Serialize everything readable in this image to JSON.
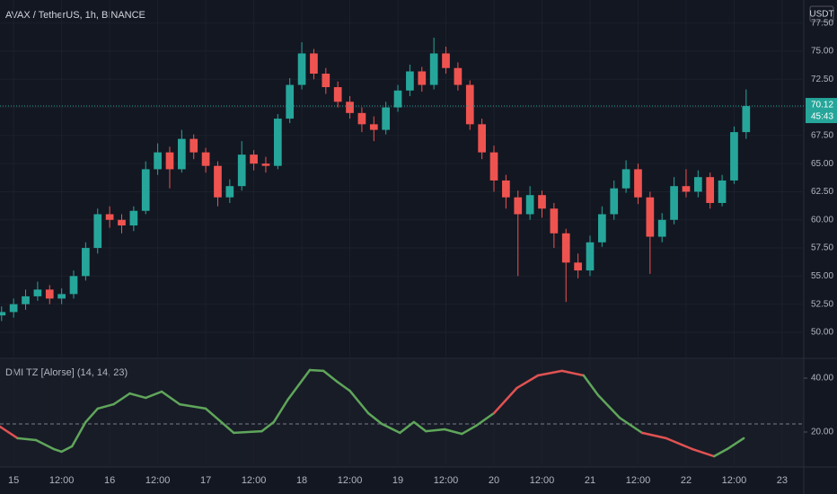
{
  "chart_data": [
    {
      "type": "candlestick",
      "title": "AVAX / TetherUS, 1h, BINANCE",
      "currency": "USDT",
      "last_price_label": "70.12",
      "countdown": "45:43",
      "last_price": 70.12,
      "up_color": "#26a69a",
      "down_color": "#ef5350",
      "x": [
        -3,
        0,
        3,
        6,
        9,
        12,
        15,
        18,
        21,
        24,
        27,
        30,
        33,
        36,
        39,
        42,
        45,
        48,
        51,
        54,
        57,
        60,
        63,
        66,
        69,
        72,
        75,
        78,
        81,
        84,
        87,
        90,
        93,
        96,
        99,
        102,
        105,
        108,
        111,
        114,
        117,
        120,
        123,
        126,
        129,
        132,
        135,
        138,
        141,
        144,
        147,
        150,
        153,
        156,
        159,
        162,
        165,
        168,
        171,
        174,
        177,
        180,
        183
      ],
      "ohlc": [
        [
          51.5,
          52.3,
          51.0,
          51.8
        ],
        [
          51.8,
          53.0,
          51.3,
          52.5
        ],
        [
          52.5,
          53.8,
          52.0,
          53.2
        ],
        [
          53.2,
          54.5,
          52.8,
          53.8
        ],
        [
          53.8,
          54.2,
          52.5,
          53.0
        ],
        [
          53.0,
          53.9,
          52.5,
          53.4
        ],
        [
          53.4,
          55.5,
          53.0,
          55.0
        ],
        [
          55.0,
          58.0,
          54.6,
          57.5
        ],
        [
          57.5,
          61.0,
          57.0,
          60.5
        ],
        [
          60.5,
          61.2,
          59.3,
          60.0
        ],
        [
          60.0,
          60.5,
          58.8,
          59.5
        ],
        [
          59.5,
          61.2,
          59.0,
          60.8
        ],
        [
          60.8,
          65.2,
          60.5,
          64.5
        ],
        [
          64.5,
          66.8,
          64.0,
          66.0
        ],
        [
          66.0,
          66.5,
          62.8,
          64.5
        ],
        [
          64.5,
          68.0,
          64.2,
          67.2
        ],
        [
          67.2,
          67.6,
          65.4,
          66.0
        ],
        [
          66.0,
          66.4,
          64.2,
          64.8
        ],
        [
          64.8,
          65.2,
          61.2,
          62.0
        ],
        [
          62.0,
          63.6,
          61.5,
          63.0
        ],
        [
          63.0,
          67.0,
          62.6,
          65.8
        ],
        [
          65.8,
          66.2,
          64.4,
          65.0
        ],
        [
          65.0,
          65.6,
          64.2,
          64.8
        ],
        [
          64.8,
          69.4,
          64.5,
          69.0
        ],
        [
          69.0,
          72.6,
          68.6,
          72.0
        ],
        [
          72.0,
          75.8,
          71.6,
          74.8
        ],
        [
          74.8,
          75.2,
          72.5,
          73.0
        ],
        [
          73.0,
          73.5,
          71.2,
          71.8
        ],
        [
          71.8,
          72.3,
          70.0,
          70.5
        ],
        [
          70.5,
          71.0,
          69.0,
          69.5
        ],
        [
          69.5,
          70.0,
          67.8,
          68.5
        ],
        [
          68.5,
          69.2,
          67.0,
          68.0
        ],
        [
          68.0,
          70.5,
          67.6,
          70.0
        ],
        [
          70.0,
          72.0,
          69.6,
          71.5
        ],
        [
          71.5,
          73.8,
          71.0,
          73.2
        ],
        [
          73.2,
          73.6,
          71.4,
          72.0
        ],
        [
          72.0,
          76.2,
          71.6,
          74.8
        ],
        [
          74.8,
          75.4,
          73.0,
          73.5
        ],
        [
          73.5,
          74.0,
          71.5,
          72.0
        ],
        [
          72.0,
          72.4,
          68.0,
          68.5
        ],
        [
          68.5,
          69.0,
          65.4,
          66.0
        ],
        [
          66.0,
          66.6,
          62.5,
          63.5
        ],
        [
          63.5,
          64.0,
          61.0,
          62.0
        ],
        [
          62.0,
          62.6,
          55.0,
          60.5
        ],
        [
          60.5,
          63.0,
          60.0,
          62.2
        ],
        [
          62.2,
          62.6,
          60.2,
          61.0
        ],
        [
          61.0,
          61.5,
          57.5,
          58.8
        ],
        [
          58.8,
          59.2,
          52.7,
          56.2
        ],
        [
          56.2,
          57.0,
          54.8,
          55.5
        ],
        [
          55.5,
          58.6,
          55.0,
          58.0
        ],
        [
          58.0,
          61.2,
          57.6,
          60.5
        ],
        [
          60.5,
          63.5,
          60.0,
          62.8
        ],
        [
          62.8,
          65.3,
          62.4,
          64.5
        ],
        [
          64.5,
          65.0,
          61.4,
          62.0
        ],
        [
          62.0,
          62.5,
          55.2,
          58.5
        ],
        [
          58.5,
          60.6,
          58.0,
          60.0
        ],
        [
          60.0,
          63.8,
          59.6,
          63.0
        ],
        [
          63.0,
          64.5,
          62.0,
          62.5
        ],
        [
          62.5,
          64.4,
          62.0,
          63.8
        ],
        [
          63.8,
          64.2,
          61.0,
          61.5
        ],
        [
          61.5,
          64.0,
          61.2,
          63.5
        ],
        [
          63.5,
          68.3,
          63.2,
          67.8
        ],
        [
          67.8,
          71.6,
          67.2,
          70.12
        ]
      ],
      "xlim": [
        -3.4,
        197.4
      ],
      "xticks": [
        {
          "value": 0,
          "label": "15"
        },
        {
          "value": 12,
          "label": "12:00"
        },
        {
          "value": 24,
          "label": "16"
        },
        {
          "value": 36,
          "label": "12:00"
        },
        {
          "value": 48,
          "label": "17"
        },
        {
          "value": 60,
          "label": "12:00"
        },
        {
          "value": 72,
          "label": "18"
        },
        {
          "value": 84,
          "label": "12:00"
        },
        {
          "value": 96,
          "label": "19"
        },
        {
          "value": 108,
          "label": "12:00"
        },
        {
          "value": 120,
          "label": "20"
        },
        {
          "value": 132,
          "label": "12:00"
        },
        {
          "value": 144,
          "label": "21"
        },
        {
          "value": 156,
          "label": "12:00"
        },
        {
          "value": 168,
          "label": "22"
        },
        {
          "value": 180,
          "label": "12:00"
        },
        {
          "value": 192,
          "label": "23"
        }
      ],
      "ylim": [
        47.76,
        79.55
      ],
      "yticks": [
        {
          "value": 50,
          "label": "50.00"
        },
        {
          "value": 52.5,
          "label": "52.50"
        },
        {
          "value": 55,
          "label": "55.00"
        },
        {
          "value": 57.5,
          "label": "57.50"
        },
        {
          "value": 60,
          "label": "60.00"
        },
        {
          "value": 62.5,
          "label": "62.50"
        },
        {
          "value": 65,
          "label": "65.00"
        },
        {
          "value": 67.5,
          "label": "67.50"
        },
        {
          "value": 70,
          "label": "70.00"
        },
        {
          "value": 72.5,
          "label": "72.50"
        },
        {
          "value": 75,
          "label": "75.00"
        },
        {
          "value": 77.5,
          "label": "77.50"
        }
      ]
    },
    {
      "type": "line",
      "title": "DMI TZ [Alorse] (14, 14, 23)",
      "x": [
        -3.4,
        1,
        5.6,
        10,
        12,
        14.6,
        18,
        21,
        25,
        29,
        33,
        37,
        41.5,
        48,
        55,
        62,
        65,
        68.5,
        74,
        77.4,
        80.8,
        84,
        88.6,
        92,
        96.5,
        100,
        103,
        107.7,
        112,
        115.5,
        120,
        125.7,
        131,
        137,
        142.4,
        146,
        151.4,
        157,
        163,
        169.5,
        175,
        178.3,
        182.4
      ],
      "values": [
        22,
        17.7,
        17,
        13.7,
        12.7,
        14.7,
        23.7,
        28.7,
        30.3,
        34.3,
        32.7,
        35,
        30.3,
        28.7,
        19.7,
        20.3,
        23.7,
        32,
        43,
        42.7,
        38.7,
        35.3,
        27,
        23,
        19.7,
        23.7,
        20.3,
        21,
        19.3,
        22.3,
        27,
        36.3,
        41,
        42.7,
        41,
        33.7,
        25.3,
        19.7,
        17.7,
        13.7,
        11,
        13.7,
        17.7
      ],
      "colors": [
        "#e05252",
        "#e05252",
        "#5fa65a",
        "#5fa65a",
        "#5fa65a",
        "#5fa65a",
        "#5fa65a",
        "#5fa65a",
        "#5fa65a",
        "#5fa65a",
        "#5fa65a",
        "#5fa65a",
        "#5fa65a",
        "#5fa65a",
        "#5fa65a",
        "#5fa65a",
        "#5fa65a",
        "#5fa65a",
        "#5fa65a",
        "#5fa65a",
        "#5fa65a",
        "#5fa65a",
        "#5fa65a",
        "#5fa65a",
        "#5fa65a",
        "#5fa65a",
        "#5fa65a",
        "#5fa65a",
        "#5fa65a",
        "#5fa65a",
        "#5fa65a",
        "#e05252",
        "#e05252",
        "#e05252",
        "#e05252",
        "#5fa65a",
        "#5fa65a",
        "#5fa65a",
        "#e05252",
        "#e05252",
        "#e05252",
        "#5fa65a",
        "#5fa65a"
      ],
      "level": 23,
      "xlim": [
        -3.4,
        197.4
      ],
      "ylim": [
        7,
        47
      ],
      "yticks": [
        {
          "value": 20,
          "label": "20.00"
        },
        {
          "value": 40,
          "label": "40.00"
        }
      ]
    }
  ]
}
